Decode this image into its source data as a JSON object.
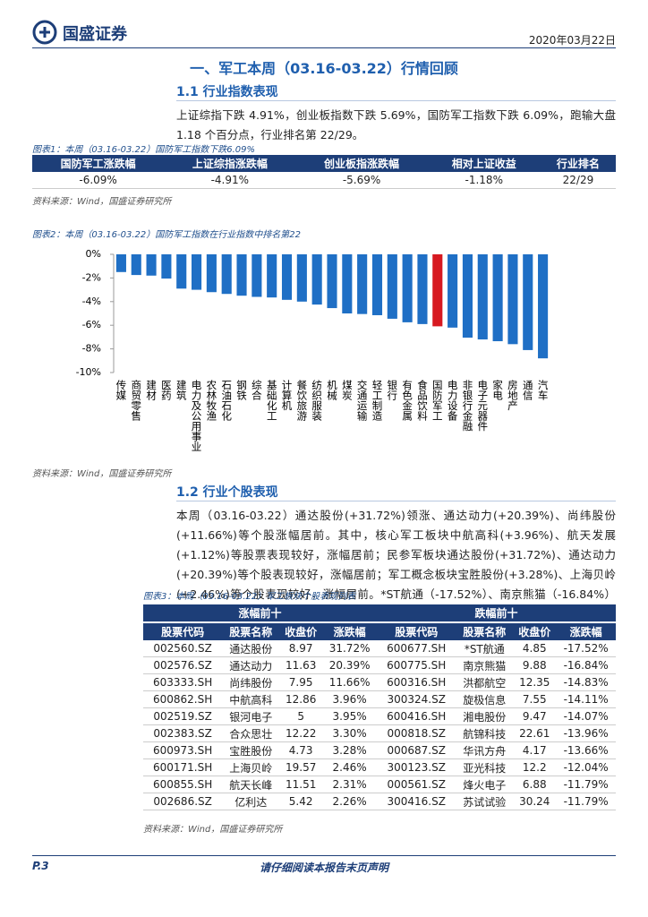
{
  "header": {
    "logo": "国盛证券",
    "date": "2020年03月22日"
  },
  "section_title": "一、军工本周（03.16-03.22）行情回顾",
  "sub1": {
    "title": "1.1 行业指数表现",
    "paragraph": "上证综指下跌 4.91%，创业板指数下跌 5.69%，国防军工指数下跌 6.09%，跑输大盘 1.18 个百分点，行业排名第 22/29。"
  },
  "table1": {
    "caption": "图表1：本周（03.16-03.22）国防军工指数下跌6.09%",
    "columns": [
      "国防军工涨跌幅",
      "上证综指涨跌幅",
      "创业板指涨跌幅",
      "相对上证收益",
      "行业排名"
    ],
    "rows": [
      [
        "-6.09%",
        "-4.91%",
        "-5.69%",
        "-1.18%",
        "22/29"
      ]
    ],
    "source": "资料来源：Wind，国盛证券研究所"
  },
  "figure2": {
    "caption": "图表2：本周（03.16-03.22）国防军工指数在行业指数中排名第22",
    "source": "资料来源：Wind，国盛证券研究所"
  },
  "chart_data": {
    "type": "bar",
    "categories": [
      "传媒",
      "商贸零售",
      "建材",
      "医药",
      "建筑",
      "电力及公用事业",
      "农林牧渔",
      "石油石化",
      "钢铁",
      "综合",
      "基础化工",
      "计算机",
      "餐饮旅游",
      "纺织服装",
      "机械",
      "煤炭",
      "交通运输",
      "轻工制造",
      "银行",
      "有色金属",
      "食品饮料",
      "国防军工",
      "电力设备",
      "非银行金融",
      "电子元器件",
      "家电",
      "房地产",
      "通信",
      "汽车"
    ],
    "values": [
      -1.5,
      -1.75,
      -1.8,
      -2.05,
      -2.9,
      -3.0,
      -3.2,
      -3.35,
      -3.5,
      -3.6,
      -3.65,
      -3.85,
      -4.0,
      -4.25,
      -4.55,
      -5.0,
      -5.05,
      -5.15,
      -5.45,
      -5.75,
      -5.9,
      -6.09,
      -6.2,
      -7.05,
      -7.2,
      -7.35,
      -7.6,
      -8.1,
      -8.8
    ],
    "colors": [
      "#1f6fc5",
      "#1f6fc5",
      "#1f6fc5",
      "#1f6fc5",
      "#1f6fc5",
      "#1f6fc5",
      "#1f6fc5",
      "#1f6fc5",
      "#1f6fc5",
      "#1f6fc5",
      "#1f6fc5",
      "#1f6fc5",
      "#1f6fc5",
      "#1f6fc5",
      "#1f6fc5",
      "#1f6fc5",
      "#1f6fc5",
      "#1f6fc5",
      "#1f6fc5",
      "#1f6fc5",
      "#1f6fc5",
      "#d71920",
      "#1f6fc5",
      "#1f6fc5",
      "#1f6fc5",
      "#1f6fc5",
      "#1f6fc5",
      "#1f6fc5",
      "#1f6fc5"
    ],
    "ylim": [
      -10,
      0
    ],
    "yticks": [
      {
        "value": 0,
        "label": "0%"
      },
      {
        "value": -2,
        "label": "-2%"
      },
      {
        "value": -4,
        "label": "-4%"
      },
      {
        "value": -6,
        "label": "-6%"
      },
      {
        "value": -8,
        "label": "-8%"
      },
      {
        "value": -10,
        "label": "-10%"
      }
    ]
  },
  "sub2": {
    "title": "1.2 行业个股表现",
    "paragraph": "本周（03.16-03.22）通达股份(+31.72%)领涨、通达动力(+20.39%)、尚纬股份(+11.66%)等个股涨幅居前。其中，核心军工板块中航高科(+3.96%)、航天发展(+1.12%)等股票表现较好，涨幅居前；民参军板块通达股份(+31.72%)、通达动力(+20.39%)等个股表现较好，涨幅居前；军工概念板块宝胜股份(+3.28%)、上海贝岭(+2.46%)等个股表现较好，涨幅居前。*ST航通（-17.52%）、南京熊猫（-16.84%）等跌幅居前。"
  },
  "table3": {
    "caption": "图表3：本周（03.16-03.22）军工板块个股表现列表",
    "groups": [
      "涨幅前十",
      "跌幅前十"
    ],
    "columns": [
      "股票代码",
      "股票名称",
      "收盘价",
      "涨跌幅",
      "股票代码",
      "股票名称",
      "收盘价",
      "涨跌幅"
    ],
    "rows": [
      [
        "002560.SZ",
        "通达股份",
        "8.97",
        "31.72%",
        "600677.SH",
        "*ST航通",
        "4.85",
        "-17.52%"
      ],
      [
        "002576.SZ",
        "通达动力",
        "11.63",
        "20.39%",
        "600775.SH",
        "南京熊猫",
        "9.88",
        "-16.84%"
      ],
      [
        "603333.SH",
        "尚纬股份",
        "7.95",
        "11.66%",
        "600316.SH",
        "洪都航空",
        "12.35",
        "-14.83%"
      ],
      [
        "600862.SH",
        "中航高科",
        "12.86",
        "3.96%",
        "300324.SZ",
        "旋极信息",
        "7.55",
        "-14.11%"
      ],
      [
        "002519.SZ",
        "银河电子",
        "5",
        "3.95%",
        "600416.SH",
        "湘电股份",
        "9.47",
        "-14.07%"
      ],
      [
        "002383.SZ",
        "合众思壮",
        "12.22",
        "3.30%",
        "000818.SZ",
        "航锦科技",
        "22.61",
        "-13.96%"
      ],
      [
        "600973.SH",
        "宝胜股份",
        "4.73",
        "3.28%",
        "000687.SZ",
        "华讯方舟",
        "4.17",
        "-13.66%"
      ],
      [
        "600171.SH",
        "上海贝岭",
        "19.57",
        "2.46%",
        "300123.SZ",
        "亚光科技",
        "12.2",
        "-12.04%"
      ],
      [
        "600855.SH",
        "航天长峰",
        "11.51",
        "2.31%",
        "000561.SZ",
        "烽火电子",
        "6.88",
        "-11.79%"
      ],
      [
        "002686.SZ",
        "亿利达",
        "5.42",
        "2.26%",
        "300416.SZ",
        "苏试试验",
        "30.24",
        "-11.79%"
      ]
    ],
    "source": "资料来源：Wind，国盛证券研究所"
  },
  "footer": {
    "page": "P.3",
    "notice": "请仔细阅读本报告末页声明"
  }
}
